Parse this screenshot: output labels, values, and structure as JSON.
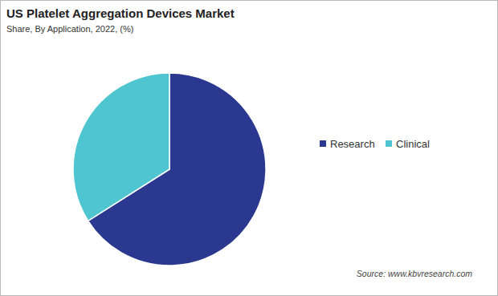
{
  "chart_data": {
    "type": "pie",
    "title": "US Platelet Aggregation Devices Market",
    "subtitle": "Share, By Application, 2022, (%)",
    "categories": [
      "Research",
      "Clinical"
    ],
    "values": [
      66,
      34
    ],
    "colors": [
      "#2a388f",
      "#4ec5d0"
    ],
    "legend": "right",
    "source": "Source: www.kbvresearch.com"
  }
}
